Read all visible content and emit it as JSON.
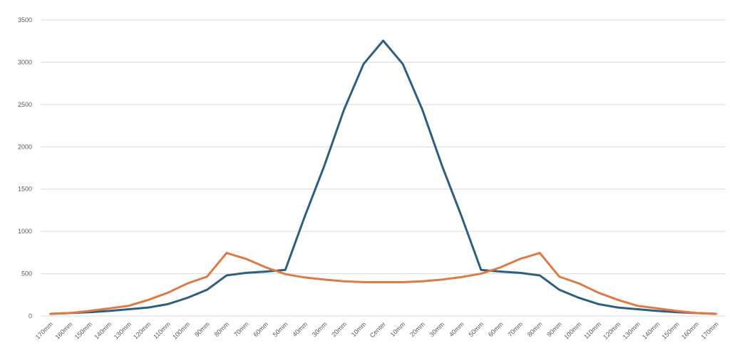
{
  "chart_data": {
    "type": "line",
    "title": "",
    "xlabel": "",
    "ylabel": "",
    "ylim": [
      0,
      3500
    ],
    "yticks": [
      0,
      500,
      1000,
      1500,
      2000,
      2500,
      3000,
      3500
    ],
    "grid": true,
    "legend": "none",
    "categories": [
      "170mm",
      "160mm",
      "150mm",
      "140mm",
      "130mm",
      "120mm",
      "110mm",
      "100mm",
      "90mm",
      "80mm",
      "70mm",
      "60mm",
      "50mm",
      "40mm",
      "30mm",
      "20mm",
      "10mm",
      "Center",
      "10mm",
      "20mm",
      "30mm",
      "40mm",
      "50mm",
      "60mm",
      "70mm",
      "80mm",
      "90mm",
      "100mm",
      "110mm",
      "120mm",
      "130mm",
      "140mm",
      "150mm",
      "160mm",
      "170mm"
    ],
    "series": [
      {
        "color": "#2e5f7f",
        "values": [
          25,
          35,
          45,
          60,
          80,
          100,
          140,
          215,
          310,
          480,
          510,
          525,
          545,
          1180,
          1780,
          2440,
          2980,
          3255,
          2980,
          2440,
          1780,
          1180,
          545,
          525,
          510,
          480,
          310,
          215,
          140,
          100,
          80,
          60,
          45,
          35,
          25
        ]
      },
      {
        "color": "#dd7a45",
        "values": [
          25,
          35,
          60,
          90,
          120,
          190,
          275,
          385,
          465,
          745,
          675,
          575,
          495,
          455,
          430,
          410,
          400,
          400,
          400,
          410,
          430,
          460,
          500,
          575,
          675,
          745,
          465,
          385,
          275,
          190,
          120,
          90,
          60,
          35,
          25
        ]
      }
    ]
  }
}
